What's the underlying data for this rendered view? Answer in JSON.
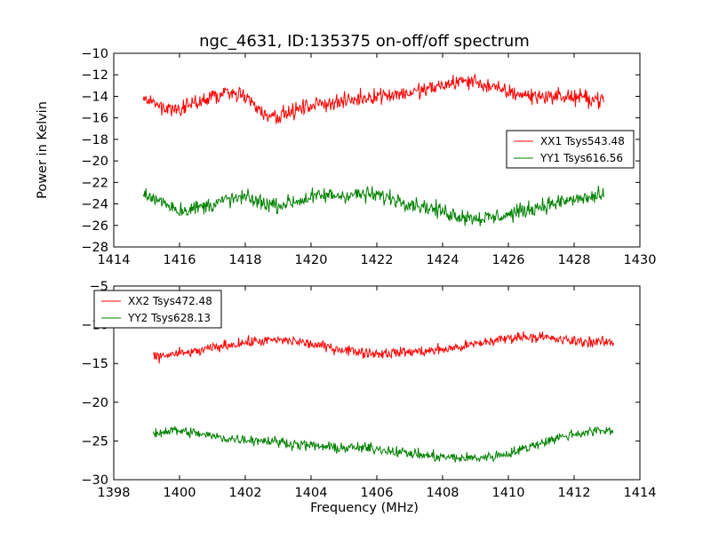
{
  "chart_data": [
    {
      "type": "line",
      "title": "ngc_4631, ID:135375 on-off/off spectrum",
      "xlabel": "",
      "ylabel": "Power in Kelvin",
      "xlim": [
        1414,
        1430
      ],
      "ylim": [
        -28,
        -10
      ],
      "xticks": [
        "1414",
        "1416",
        "1418",
        "1420",
        "1422",
        "1424",
        "1426",
        "1428",
        "1430"
      ],
      "yticks": [
        "−28",
        "−26",
        "−24",
        "−22",
        "−20",
        "−18",
        "−16",
        "−14",
        "−12",
        "−10"
      ],
      "grid": false,
      "legend": "center-right",
      "noise_amplitude": 1.1,
      "series": [
        {
          "name": "XX1 Tsys543.48",
          "color": "#ff0000",
          "x": [
            1414.9,
            1415.5,
            1416.0,
            1416.5,
            1417.0,
            1417.5,
            1418.0,
            1418.5,
            1419.0,
            1419.5,
            1420.0,
            1420.5,
            1421.0,
            1421.5,
            1422.0,
            1422.5,
            1423.0,
            1423.5,
            1424.0,
            1424.5,
            1425.0,
            1425.5,
            1426.0,
            1426.5,
            1427.0,
            1427.5,
            1428.0,
            1428.5,
            1428.9
          ],
          "y": [
            -14.3,
            -15.0,
            -15.3,
            -14.6,
            -14.0,
            -13.6,
            -14.0,
            -15.5,
            -15.8,
            -15.4,
            -14.8,
            -14.6,
            -14.5,
            -14.2,
            -13.9,
            -13.8,
            -13.7,
            -13.4,
            -13.0,
            -12.6,
            -12.6,
            -13.2,
            -13.6,
            -13.9,
            -14.0,
            -14.0,
            -14.1,
            -14.2,
            -14.3
          ]
        },
        {
          "name": "YY1 Tsys616.56",
          "color": "#008000",
          "x": [
            1414.9,
            1415.5,
            1416.0,
            1416.5,
            1417.0,
            1417.5,
            1418.0,
            1418.5,
            1419.0,
            1419.5,
            1420.0,
            1420.5,
            1421.0,
            1421.5,
            1422.0,
            1422.5,
            1423.0,
            1423.5,
            1424.0,
            1424.5,
            1425.0,
            1425.5,
            1426.0,
            1426.5,
            1427.0,
            1427.5,
            1428.0,
            1428.5,
            1428.9
          ],
          "y": [
            -23.2,
            -23.8,
            -24.6,
            -24.4,
            -24.0,
            -23.6,
            -23.4,
            -23.9,
            -24.1,
            -23.8,
            -23.4,
            -23.2,
            -23.2,
            -23.1,
            -23.2,
            -23.5,
            -23.9,
            -24.3,
            -24.7,
            -25.1,
            -25.3,
            -25.3,
            -25.0,
            -24.6,
            -24.2,
            -23.9,
            -23.6,
            -23.4,
            -23.3
          ]
        }
      ]
    },
    {
      "type": "line",
      "title": "",
      "xlabel": "Frequency (MHz)",
      "ylabel": "",
      "xlim": [
        1398,
        1414
      ],
      "ylim": [
        -30,
        -5
      ],
      "xticks": [
        "1398",
        "1400",
        "1402",
        "1404",
        "1406",
        "1408",
        "1410",
        "1412",
        "1414"
      ],
      "yticks": [
        "−30",
        "−25",
        "−20",
        "−15",
        "−10",
        "−5"
      ],
      "grid": false,
      "legend": "top-left",
      "noise_amplitude": 1.0,
      "series": [
        {
          "name": "XX2 Tsys472.48",
          "color": "#ff0000",
          "x": [
            1399.2,
            1399.8,
            1400.5,
            1401.0,
            1401.5,
            1402.0,
            1402.5,
            1403.0,
            1403.5,
            1404.0,
            1404.5,
            1405.0,
            1405.5,
            1406.0,
            1406.5,
            1407.0,
            1407.5,
            1408.0,
            1408.5,
            1409.0,
            1409.5,
            1410.0,
            1410.5,
            1411.0,
            1411.5,
            1412.0,
            1412.5,
            1413.2
          ],
          "y": [
            -14.2,
            -13.8,
            -13.5,
            -13.0,
            -12.6,
            -12.3,
            -12.1,
            -12.0,
            -12.1,
            -12.5,
            -12.9,
            -13.2,
            -13.5,
            -13.7,
            -13.6,
            -13.5,
            -13.4,
            -13.2,
            -12.9,
            -12.5,
            -12.1,
            -11.7,
            -11.5,
            -11.6,
            -11.9,
            -12.1,
            -12.2,
            -12.3
          ]
        },
        {
          "name": "YY2 Tsys628.13",
          "color": "#008000",
          "x": [
            1399.2,
            1399.8,
            1400.5,
            1401.0,
            1401.5,
            1402.0,
            1402.5,
            1403.0,
            1403.5,
            1404.0,
            1404.5,
            1405.0,
            1405.5,
            1406.0,
            1406.5,
            1407.0,
            1407.5,
            1408.0,
            1408.5,
            1409.0,
            1409.5,
            1410.0,
            1410.5,
            1411.0,
            1411.5,
            1412.0,
            1412.5,
            1413.2
          ],
          "y": [
            -24.0,
            -23.6,
            -24.0,
            -24.4,
            -24.7,
            -24.8,
            -24.9,
            -25.1,
            -25.4,
            -25.6,
            -25.8,
            -25.9,
            -25.9,
            -26.0,
            -26.3,
            -26.6,
            -26.9,
            -27.1,
            -27.2,
            -27.2,
            -27.0,
            -26.6,
            -26.0,
            -25.2,
            -24.6,
            -24.1,
            -23.8,
            -23.6
          ]
        }
      ]
    }
  ]
}
